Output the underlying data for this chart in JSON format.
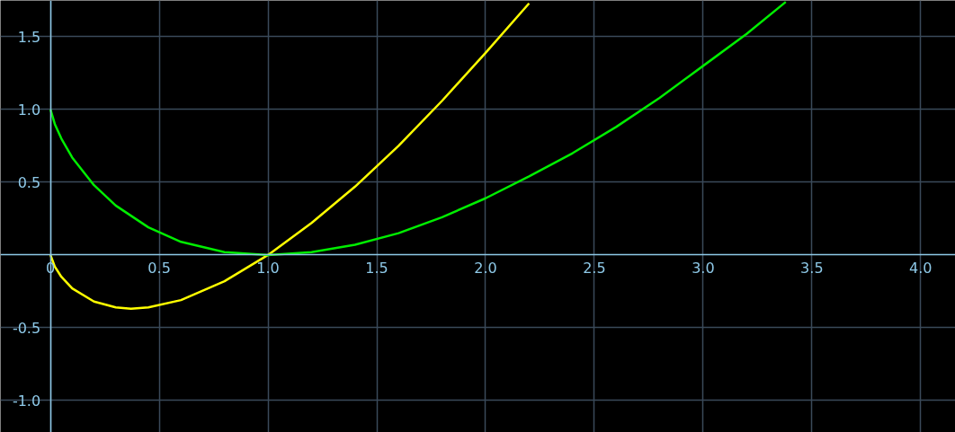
{
  "chart_data": {
    "type": "line",
    "xlim": [
      -0.23,
      4.16
    ],
    "ylim": [
      -1.22,
      1.75
    ],
    "xticks": [
      {
        "value": 0,
        "label": "0"
      },
      {
        "value": 0.5,
        "label": "0.5"
      },
      {
        "value": 1,
        "label": "1.0"
      },
      {
        "value": 1.5,
        "label": "1.5"
      },
      {
        "value": 2,
        "label": "2.0"
      },
      {
        "value": 2.5,
        "label": "2.5"
      },
      {
        "value": 3,
        "label": "3.0"
      },
      {
        "value": 3.5,
        "label": "3.5"
      },
      {
        "value": 4,
        "label": "4.0"
      }
    ],
    "yticks": [
      {
        "value": -1,
        "label": "-1.0"
      },
      {
        "value": -0.5,
        "label": "-0.5"
      },
      {
        "value": 0.5,
        "label": "0.5"
      },
      {
        "value": 1,
        "label": "1.0"
      },
      {
        "value": 1.5,
        "label": "1.5"
      }
    ],
    "grid": true,
    "line_style": "solid",
    "marker": "none",
    "series": [
      {
        "color": "#ffff00",
        "x": [
          0,
          0.02,
          0.05,
          0.1,
          0.2,
          0.3,
          0.37,
          0.45,
          0.6,
          0.8,
          1.0,
          1.2,
          1.4,
          1.6,
          1.8,
          2.0,
          2.2
        ],
        "values": [
          0,
          -0.08,
          -0.15,
          -0.23,
          -0.32,
          -0.36,
          -0.37,
          -0.36,
          -0.31,
          -0.18,
          0,
          0.22,
          0.47,
          0.75,
          1.06,
          1.39,
          1.73
        ]
      },
      {
        "color": "#00ee00",
        "x": [
          0,
          0.02,
          0.05,
          0.1,
          0.2,
          0.3,
          0.45,
          0.6,
          0.8,
          1.0,
          1.2,
          1.4,
          1.6,
          1.8,
          2.0,
          2.2,
          2.4,
          2.6,
          2.8,
          3.0,
          3.2,
          3.38
        ],
        "values": [
          1,
          0.9,
          0.8,
          0.67,
          0.48,
          0.34,
          0.19,
          0.09,
          0.02,
          0,
          0.02,
          0.07,
          0.15,
          0.26,
          0.39,
          0.54,
          0.7,
          0.88,
          1.08,
          1.3,
          1.52,
          1.74
        ]
      }
    ]
  }
}
